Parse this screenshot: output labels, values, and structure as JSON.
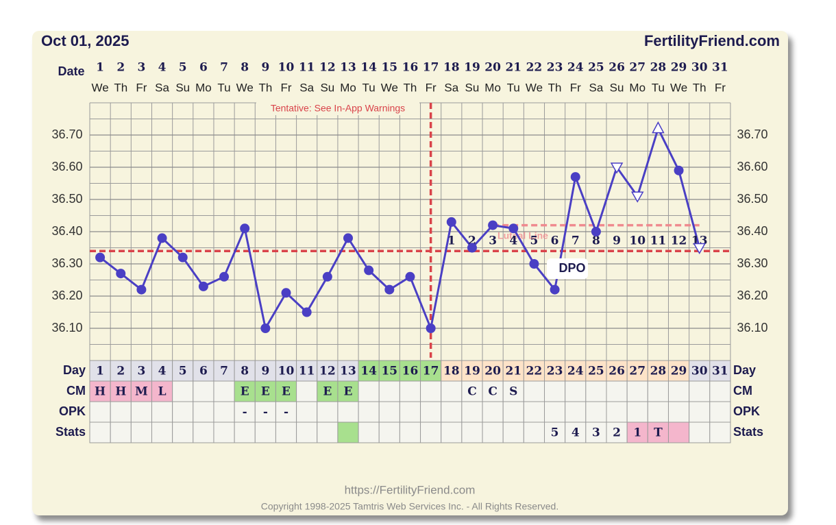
{
  "header": {
    "date": "Oct 01, 2025",
    "site": "FertilityFriend.com"
  },
  "chart_data": {
    "type": "line",
    "x_label": "Date",
    "categories": [
      1,
      2,
      3,
      4,
      5,
      6,
      7,
      8,
      9,
      10,
      11,
      12,
      13,
      14,
      15,
      16,
      17,
      18,
      19,
      20,
      21,
      22,
      23,
      24,
      25,
      26,
      27,
      28,
      29,
      30,
      31
    ],
    "weekdays": [
      "We",
      "Th",
      "Fr",
      "Sa",
      "Su",
      "Mo",
      "Tu",
      "We",
      "Th",
      "Fr",
      "Sa",
      "Su",
      "Mo",
      "Tu",
      "We",
      "Th",
      "Fr",
      "Sa",
      "Su",
      "Mo",
      "Tu",
      "We",
      "Th",
      "Fr",
      "Sa",
      "Su",
      "Mo",
      "Tu",
      "We",
      "Th",
      "Fr"
    ],
    "values": [
      36.32,
      36.27,
      36.22,
      36.38,
      36.32,
      36.23,
      36.26,
      36.41,
      36.1,
      36.21,
      36.15,
      36.26,
      36.38,
      36.28,
      36.22,
      36.26,
      36.1,
      36.43,
      36.35,
      36.42,
      36.41,
      36.3,
      36.22,
      36.57,
      36.4,
      36.6,
      36.51,
      36.72,
      36.59,
      36.35,
      null
    ],
    "markers": [
      "circle",
      "circle",
      "circle",
      "circle",
      "circle",
      "circle",
      "circle",
      "circle",
      "circle",
      "circle",
      "circle",
      "circle",
      "circle",
      "circle",
      "circle",
      "circle",
      "circle",
      "circle",
      "circle",
      "circle",
      "circle",
      "circle",
      "circle",
      "circle",
      "circle",
      "triangle-down",
      "triangle-down",
      "triangle-up",
      "circle",
      "triangle-down",
      null
    ],
    "color": "#4a3fc4",
    "ylim": [
      36.0,
      36.8
    ],
    "yticks": [
      {
        "value": 36.1,
        "label": "36.10"
      },
      {
        "value": 36.2,
        "label": "36.20"
      },
      {
        "value": 36.3,
        "label": "36.30"
      },
      {
        "value": 36.4,
        "label": "36.40"
      },
      {
        "value": 36.5,
        "label": "36.50"
      },
      {
        "value": 36.6,
        "label": "36.60"
      },
      {
        "value": 36.7,
        "label": "36.70"
      }
    ],
    "grid": true,
    "coverline": 36.34,
    "ovulation_day": 17,
    "line_color": "#d9434a",
    "luteal_line": {
      "label": "Luteal Line",
      "value": 36.42,
      "from": 20,
      "to": 30
    },
    "warning": "Tentative: See In-App Warnings",
    "dpo": [
      null,
      null,
      null,
      null,
      null,
      null,
      null,
      null,
      null,
      null,
      null,
      null,
      null,
      null,
      null,
      null,
      null,
      1,
      2,
      3,
      4,
      5,
      6,
      7,
      8,
      9,
      10,
      11,
      12,
      13,
      null
    ],
    "dpo_label": "DPO"
  },
  "table": {
    "rows": [
      {
        "label": "Day",
        "cells": [
          1,
          2,
          3,
          4,
          5,
          6,
          7,
          8,
          9,
          10,
          11,
          12,
          13,
          14,
          15,
          16,
          17,
          18,
          19,
          20,
          21,
          22,
          23,
          24,
          25,
          26,
          27,
          28,
          29,
          30,
          31
        ],
        "colors": [
          "#e1e1e9",
          "#e1e1e9",
          "#e1e1e9",
          "#e1e1e9",
          "#e1e1e9",
          "#e1e1e9",
          "#e1e1e9",
          "#e1e1e9",
          "#e1e1e9",
          "#e1e1e9",
          "#e1e1e9",
          "#e1e1e9",
          "#e1e1e9",
          "#a8e08e",
          "#a8e08e",
          "#a8e08e",
          "#a8e08e",
          "#fde3c8",
          "#fde3c8",
          "#fde3c8",
          "#fde3c8",
          "#fde3c8",
          "#fde3c8",
          "#fde3c8",
          "#fde3c8",
          "#fde3c8",
          "#fde3c8",
          "#fde3c8",
          "#fde3c8",
          "#e1e1e9",
          "#e1e1e9"
        ]
      },
      {
        "label": "CM",
        "cells": [
          "H",
          "H",
          "M",
          "L",
          null,
          null,
          null,
          "E",
          "E",
          "E",
          null,
          "E",
          "E",
          null,
          null,
          null,
          null,
          null,
          "C",
          "C",
          "S",
          null,
          null,
          null,
          null,
          null,
          null,
          null,
          null,
          null,
          null
        ],
        "colors": [
          "#f4b6cc",
          "#f4b6cc",
          "#f4b6cc",
          "#f4b6cc",
          null,
          null,
          null,
          "#a8e08e",
          "#a8e08e",
          "#a8e08e",
          null,
          "#a8e08e",
          "#a8e08e",
          null,
          null,
          null,
          null,
          null,
          null,
          null,
          null,
          null,
          null,
          null,
          null,
          null,
          null,
          null,
          null,
          null,
          null
        ]
      },
      {
        "label": "OPK",
        "cells": [
          null,
          null,
          null,
          null,
          null,
          null,
          null,
          "-",
          "-",
          "-",
          null,
          null,
          null,
          null,
          null,
          null,
          null,
          null,
          null,
          null,
          null,
          null,
          null,
          null,
          null,
          null,
          null,
          null,
          null,
          null,
          null
        ],
        "colors": [
          null,
          null,
          null,
          null,
          null,
          null,
          null,
          null,
          null,
          null,
          null,
          null,
          null,
          null,
          null,
          null,
          null,
          null,
          null,
          null,
          null,
          null,
          null,
          null,
          null,
          null,
          null,
          null,
          null,
          null,
          null
        ]
      },
      {
        "label": "Stats",
        "cells": [
          null,
          null,
          null,
          null,
          null,
          null,
          null,
          null,
          null,
          null,
          null,
          null,
          null,
          null,
          null,
          null,
          null,
          null,
          null,
          null,
          null,
          null,
          5,
          4,
          3,
          2,
          1,
          "T",
          null,
          null,
          null
        ],
        "colors": [
          null,
          null,
          null,
          null,
          null,
          null,
          null,
          null,
          null,
          null,
          null,
          null,
          "#a8e08e",
          null,
          null,
          null,
          null,
          null,
          null,
          null,
          null,
          null,
          null,
          null,
          null,
          null,
          "#f4b6cc",
          "#f4b6cc",
          "#f4b6cc",
          null,
          null
        ]
      }
    ]
  },
  "footer": {
    "url": "https://FertilityFriend.com",
    "copyright": "Copyright 1998-2025 Tamtris Web Services Inc. - All Rights Reserved."
  }
}
